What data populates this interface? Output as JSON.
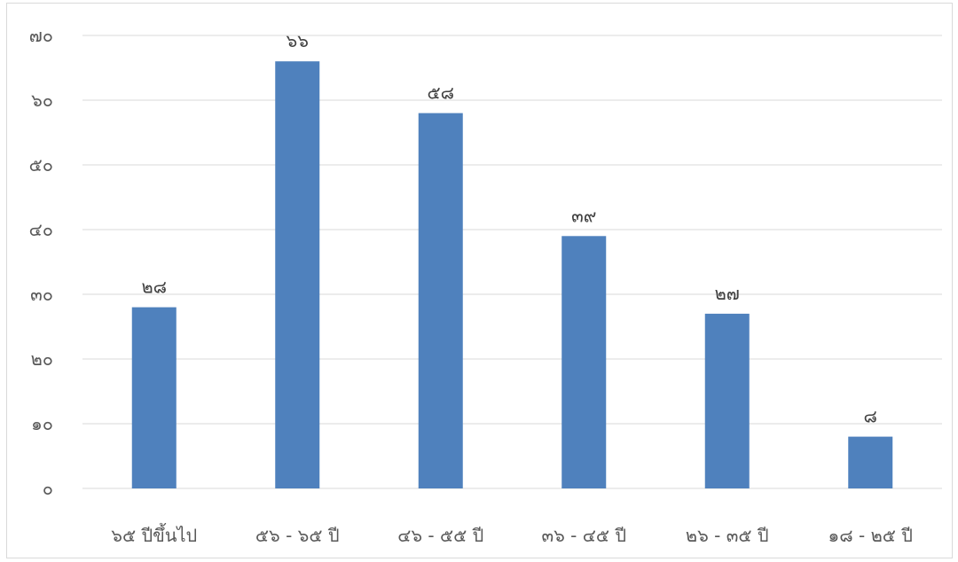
{
  "chart_data": {
    "type": "bar",
    "title": "",
    "xlabel": "",
    "ylabel": "",
    "categories": [
      "๖๕ ปีขึ้นไป",
      "๕๖ - ๖๕ ปี",
      "๔๖ - ๕๕ ปี",
      "๓๖ - ๔๕ ปี",
      "๒๖ - ๓๕ ปี",
      "๑๘ - ๒๕ ปี"
    ],
    "values": [
      28,
      66,
      58,
      39,
      27,
      8
    ],
    "value_labels": [
      "๒๘",
      "๖๖",
      "๕๘",
      "๓๙",
      "๒๗",
      "๘"
    ],
    "ylim": [
      0,
      70
    ],
    "yticks": [
      0,
      10,
      20,
      30,
      40,
      50,
      60,
      70
    ],
    "ytick_labels": [
      "๐",
      "๑๐",
      "๒๐",
      "๓๐",
      "๔๐",
      "๕๐",
      "๖๐",
      "๗๐"
    ],
    "grid": true,
    "legend": "none",
    "bar_color": "#4f81bd",
    "grid_color": "#d9d9d9"
  }
}
